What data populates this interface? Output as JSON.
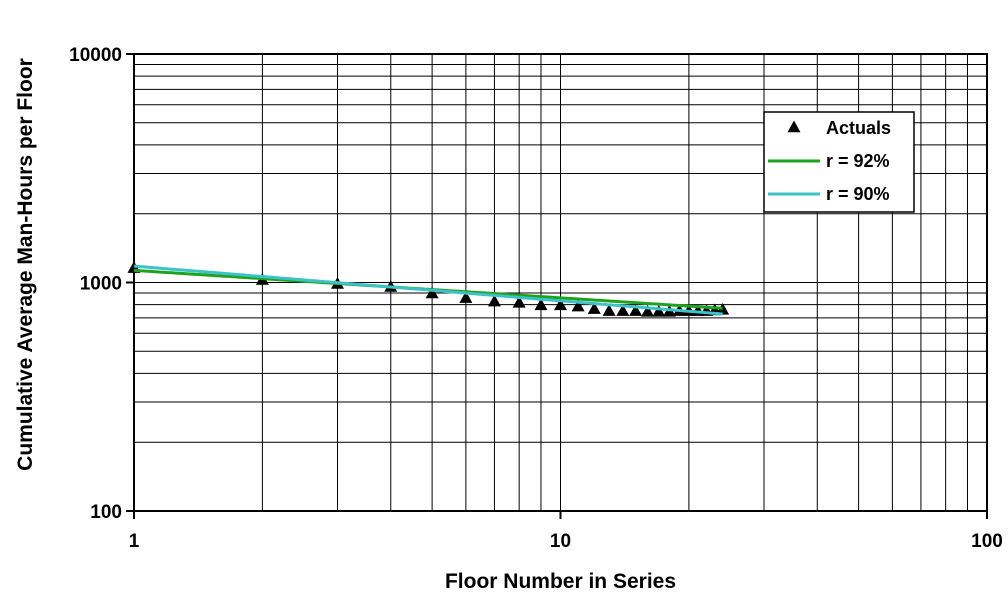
{
  "chart_data": {
    "type": "scatter",
    "xlabel": "Floor Number in Series",
    "ylabel": "Cumulative Average Man-Hours per Floor",
    "x_scale": "log",
    "y_scale": "log",
    "xlim": [
      1,
      100
    ],
    "ylim": [
      100,
      10000
    ],
    "grid": true,
    "legend_position": "top-right",
    "x_tick_labels": [
      "1",
      "10",
      "100"
    ],
    "y_tick_labels": [
      "100",
      "1000",
      "10000"
    ],
    "series": [
      {
        "name": "Actuals",
        "kind": "markers",
        "marker": "triangle",
        "color": "#000000",
        "x": [
          1,
          2,
          3,
          4,
          5,
          6,
          7,
          8,
          9,
          10,
          11,
          12,
          13,
          14,
          15,
          16,
          17,
          18,
          19,
          20,
          21,
          22,
          23,
          24
        ],
        "y": [
          1150,
          1020,
          980,
          950,
          890,
          850,
          820,
          810,
          790,
          790,
          780,
          760,
          745,
          745,
          745,
          740,
          740,
          740,
          745,
          745,
          745,
          745,
          750,
          755
        ]
      },
      {
        "name": "r = 92%",
        "kind": "line",
        "color": "#1fa31f",
        "first_unit": 1130,
        "learning_rate": 0.92,
        "x_range": [
          1,
          24
        ]
      },
      {
        "name": "r = 90%",
        "kind": "line",
        "color": "#3cc2c9",
        "first_unit": 1180,
        "learning_rate": 0.9,
        "x_range": [
          1,
          24
        ]
      }
    ]
  }
}
